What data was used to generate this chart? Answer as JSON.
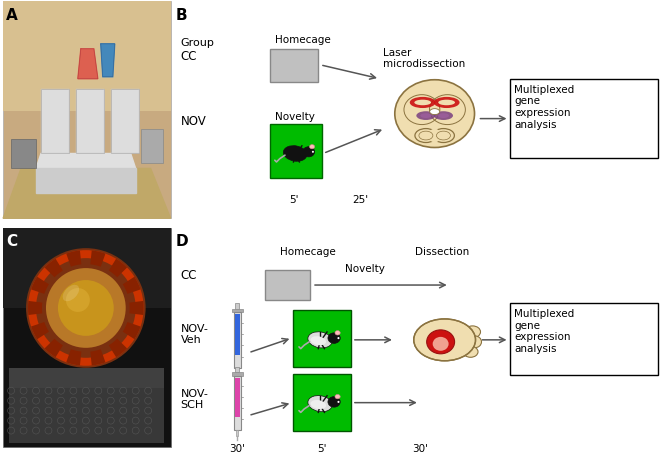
{
  "bg_color": "#ffffff",
  "panel_A_label": "A",
  "panel_B_label": "B",
  "panel_C_label": "C",
  "panel_D_label": "D",
  "group_label": "Group",
  "cc_label": "CC",
  "nov_label": "NOV",
  "homecage_label": "Homecage",
  "novelty_label": "Novelty",
  "laser_label": "Laser\nmicrodissection",
  "multiplexed_label": "Multiplexed\ngene\nexpression\nanalysis",
  "time_5": "5'",
  "time_25": "25'",
  "dissection_label": "Dissection",
  "nov_veh_label": "NOV-\nVeh",
  "nov_sch_label": "NOV-\nSCH",
  "time_30a": "30'",
  "time_5b": "5'",
  "time_30b": "30'",
  "green_color": "#00bb00",
  "gray_box_color": "#b8b8b8",
  "arrow_color": "#555555",
  "brain_fill": "#f0deb0",
  "brain_outline": "#8b7340",
  "brain_red": "#cc1111",
  "brain_purple": "#7a4080",
  "brain_light_purple": "#a060a0",
  "rat_fill": "#f0deb0",
  "rat_outline": "#8b7340",
  "rat_red": "#cc1111",
  "rat_pink": "#f0a090",
  "syringe_blue": "#3366dd",
  "syringe_pink": "#dd44aa",
  "syringe_barrel": "#dddddd",
  "syringe_outline": "#888888",
  "white": "#ffffff",
  "black": "#000000",
  "photo_A_bg": "#c8aa80",
  "photo_A_wall": "#d0b890",
  "photo_A_floor": "#c0a870",
  "photo_A_arena_top": "#e8e8e8",
  "photo_A_arena_side": "#c8c8c8",
  "photo_A_red_bucket": "#dd6655",
  "photo_A_blue_bucket": "#4488cc",
  "photo_C_bg": "#111111",
  "photo_C_wall": "#333333",
  "photo_C_floor": "#444444",
  "photo_C_mat": "#888888",
  "photo_C_disk_outer": "#8b3a10",
  "photo_C_disk_red": "#cc3300",
  "photo_C_disk_inner": "#c09030",
  "photo_C_disk_center": "#d4a840"
}
